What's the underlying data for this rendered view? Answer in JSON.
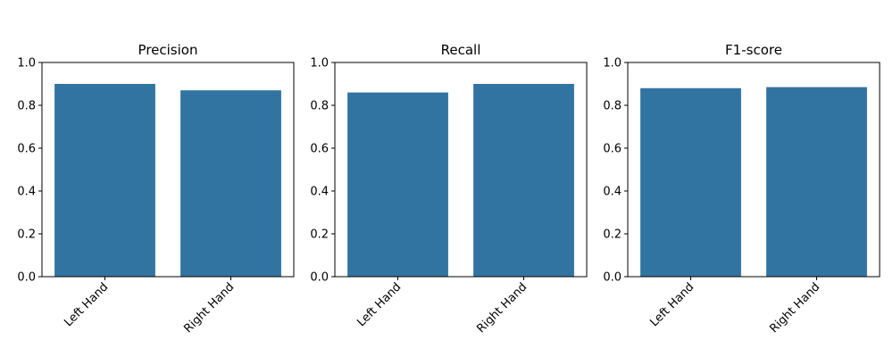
{
  "chart_data": [
    {
      "type": "bar",
      "title": "Precision",
      "categories": [
        "Left Hand",
        "Right Hand"
      ],
      "values": [
        0.9,
        0.87
      ],
      "xlabel": "",
      "ylabel": "",
      "ylim": [
        0,
        1
      ],
      "yticks": [
        "0.0",
        "0.2",
        "0.4",
        "0.6",
        "0.8",
        "1.0"
      ],
      "grid": false,
      "bar_color": "#3274a1"
    },
    {
      "type": "bar",
      "title": "Recall",
      "categories": [
        "Left Hand",
        "Right Hand"
      ],
      "values": [
        0.86,
        0.9
      ],
      "xlabel": "",
      "ylabel": "",
      "ylim": [
        0,
        1
      ],
      "yticks": [
        "0.0",
        "0.2",
        "0.4",
        "0.6",
        "0.8",
        "1.0"
      ],
      "grid": false,
      "bar_color": "#3274a1"
    },
    {
      "type": "bar",
      "title": "F1-score",
      "categories": [
        "Left Hand",
        "Right Hand"
      ],
      "values": [
        0.88,
        0.885
      ],
      "xlabel": "",
      "ylabel": "",
      "ylim": [
        0,
        1
      ],
      "yticks": [
        "0.0",
        "0.2",
        "0.4",
        "0.6",
        "0.8",
        "1.0"
      ],
      "grid": false,
      "bar_color": "#3274a1"
    }
  ]
}
